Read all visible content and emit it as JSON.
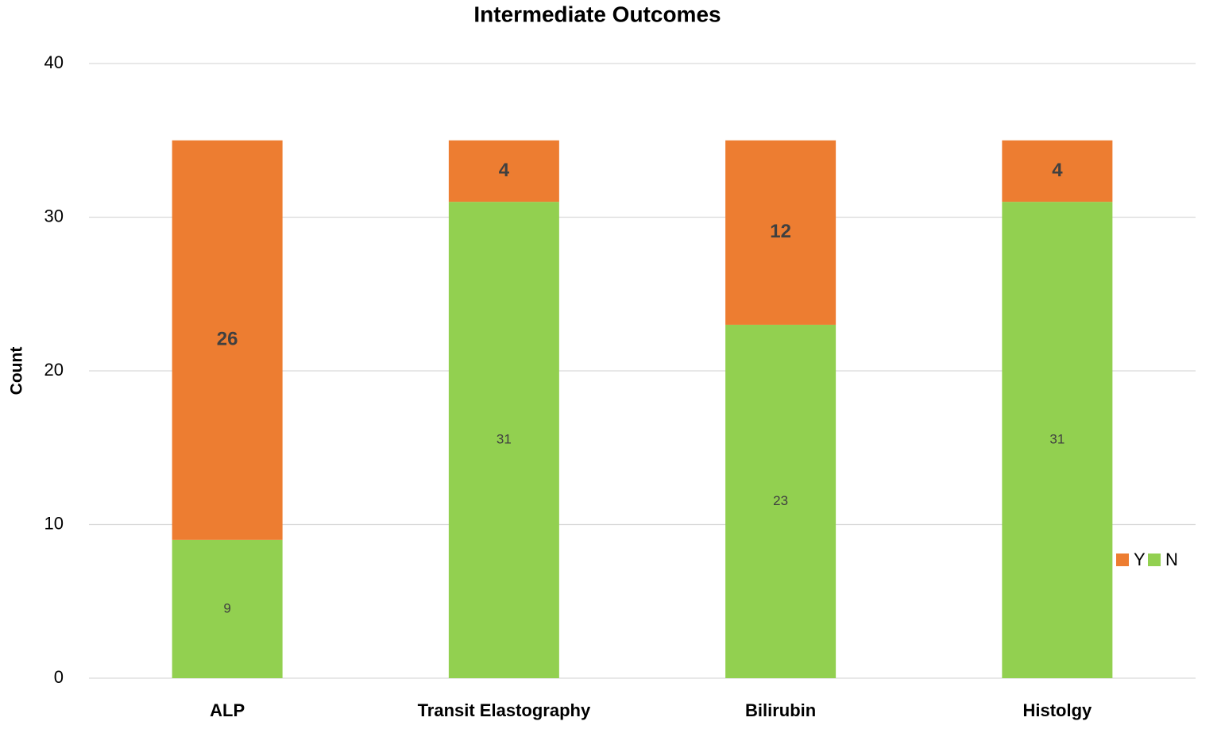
{
  "chart_data": {
    "type": "stacked_bar",
    "title": "Intermediate Outcomes",
    "y_label": "Count",
    "categories": [
      "ALP",
      "Transit Elastography",
      "Bilirubin",
      "Histolgy"
    ],
    "series": [
      {
        "name": "Y",
        "color": "#ed7d31",
        "values": [
          26,
          4,
          12,
          4
        ]
      },
      {
        "name": "N",
        "color": "#92d050",
        "values": [
          9,
          31,
          23,
          31
        ]
      }
    ],
    "ylim": [
      0,
      40
    ],
    "yticks": [
      0,
      10,
      20,
      30,
      40
    ],
    "grid": true,
    "legend": "right"
  }
}
